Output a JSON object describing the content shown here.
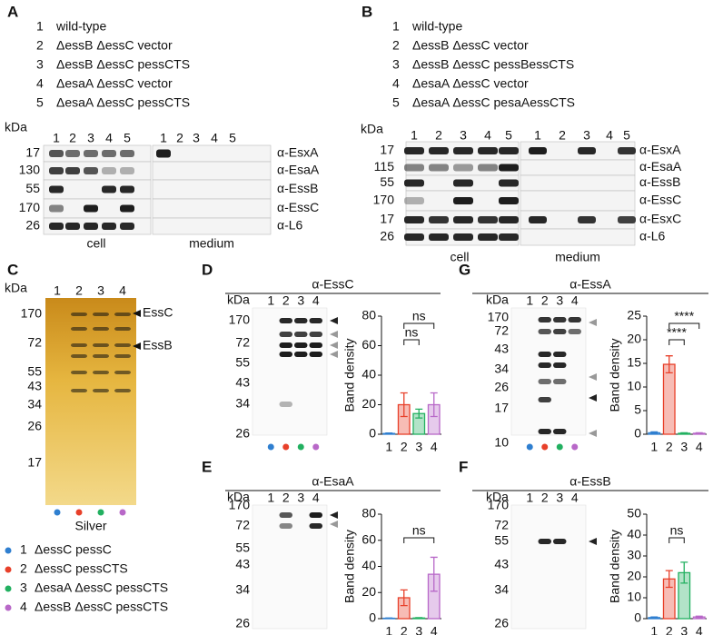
{
  "A": {
    "label": "A",
    "legend": [
      {
        "n": "1",
        "text": "wild-type"
      },
      {
        "n": "2",
        "text": "ΔessB ΔessC vector"
      },
      {
        "n": "3",
        "text": "ΔessB ΔessC pessCTS"
      },
      {
        "n": "4",
        "text": "ΔesaA ΔessC vector"
      },
      {
        "n": "5",
        "text": "ΔesaA ΔessC pessCTS"
      }
    ],
    "unit": "kDa",
    "lanes": [
      "1",
      "2",
      "3",
      "4",
      "5"
    ],
    "markers": [
      "17",
      "130",
      "55",
      "170",
      "26"
    ],
    "antibodies": [
      "α-EsxA",
      "α-EsaA",
      "α-EssB",
      "α-EssC",
      "α-L6"
    ],
    "fractions": [
      "cell",
      "medium"
    ]
  },
  "B": {
    "label": "B",
    "legend": [
      {
        "n": "1",
        "text": "wild-type"
      },
      {
        "n": "2",
        "text": "ΔessB ΔessC vector"
      },
      {
        "n": "3",
        "text": "ΔessB ΔessC pessBessCTS"
      },
      {
        "n": "4",
        "text": "ΔesaA ΔessC vector"
      },
      {
        "n": "5",
        "text": "ΔesaA ΔessC pesaAessCTS"
      }
    ],
    "unit": "kDa",
    "lanes": [
      "1",
      "2",
      "3",
      "4",
      "5"
    ],
    "markers": [
      "17",
      "115",
      "55",
      "170",
      "17",
      "26"
    ],
    "antibodies": [
      "α-EsxA",
      "α-EsaA",
      "α-EssB",
      "α-EssC",
      "α-EsxC",
      "α-L6"
    ],
    "fractions": [
      "cell",
      "medium"
    ]
  },
  "C": {
    "label": "C",
    "unit": "kDa",
    "lanes": [
      "1",
      "2",
      "3",
      "4"
    ],
    "markers": [
      "170",
      "72",
      "55",
      "43",
      "34",
      "26",
      "17"
    ],
    "bands": [
      "EssC",
      "EssB"
    ],
    "stain": "Silver",
    "lane_colors": [
      "#2f7fd0",
      "#e8402a",
      "#22b060",
      "#b868c8"
    ],
    "legend": [
      {
        "n": "1",
        "text": "ΔessC pessC"
      },
      {
        "n": "2",
        "text": "ΔessC pessCTS"
      },
      {
        "n": "3",
        "text": "ΔesaA ΔessC pessCTS"
      },
      {
        "n": "4",
        "text": "ΔessB ΔessC pessCTS"
      }
    ]
  },
  "D": {
    "label": "D",
    "antibody": "α-EssC",
    "unit": "kDa",
    "lanes": [
      "1",
      "2",
      "3",
      "4"
    ],
    "markers": [
      "170",
      "72",
      "55",
      "43",
      "34",
      "26"
    ],
    "chart_data": {
      "type": "bar",
      "ylabel": "Band density",
      "categories": [
        "1",
        "2",
        "3",
        "4"
      ],
      "values": [
        0.5,
        20,
        14,
        20
      ],
      "errors": [
        0.3,
        8,
        3,
        8
      ],
      "colors": [
        "#2f7fd0",
        "#e8402a",
        "#22b060",
        "#b868c8"
      ],
      "ylim": [
        0,
        80
      ],
      "yticks": [
        0,
        20,
        40,
        60,
        80
      ],
      "annotations": [
        {
          "text": "ns",
          "between": [
            "2",
            "3"
          ]
        },
        {
          "text": "ns",
          "between": [
            "2",
            "4"
          ]
        }
      ]
    }
  },
  "G": {
    "label": "G",
    "antibody": "α-EssA",
    "unit": "kDa",
    "lanes": [
      "1",
      "2",
      "3",
      "4"
    ],
    "markers": [
      "170",
      "72",
      "43",
      "34",
      "26",
      "17",
      "10"
    ],
    "chart_data": {
      "type": "bar",
      "ylabel": "Band density",
      "categories": [
        "1",
        "2",
        "3",
        "4"
      ],
      "values": [
        0.3,
        14.8,
        0.2,
        0.2
      ],
      "errors": [
        0.2,
        1.8,
        0.1,
        0.1
      ],
      "colors": [
        "#2f7fd0",
        "#e8402a",
        "#22b060",
        "#b868c8"
      ],
      "ylim": [
        0,
        25
      ],
      "yticks": [
        0,
        5,
        10,
        15,
        20,
        25
      ],
      "annotations": [
        {
          "text": "****",
          "between": [
            "2",
            "3"
          ]
        },
        {
          "text": "****",
          "between": [
            "2",
            "4"
          ]
        }
      ]
    }
  },
  "E": {
    "label": "E",
    "antibody": "α-EsaA",
    "unit": "kDa",
    "lanes": [
      "1",
      "2",
      "3",
      "4"
    ],
    "markers": [
      "170",
      "72",
      "55",
      "43",
      "34",
      "26"
    ],
    "chart_data": {
      "type": "bar",
      "ylabel": "Band density",
      "categories": [
        "1",
        "2",
        "3",
        "4"
      ],
      "values": [
        0.3,
        16,
        0.5,
        34
      ],
      "errors": [
        0.2,
        6,
        0.3,
        13
      ],
      "colors": [
        "#2f7fd0",
        "#e8402a",
        "#22b060",
        "#b868c8"
      ],
      "ylim": [
        0,
        80
      ],
      "yticks": [
        0,
        20,
        40,
        60,
        80
      ],
      "annotations": [
        {
          "text": "ns",
          "between": [
            "2",
            "4"
          ]
        }
      ]
    }
  },
  "F": {
    "label": "F",
    "antibody": "α-EssB",
    "unit": "kDa",
    "lanes": [
      "1",
      "2",
      "3",
      "4"
    ],
    "markers": [
      "170",
      "72",
      "55",
      "43",
      "34",
      "26"
    ],
    "chart_data": {
      "type": "bar",
      "ylabel": "Band density",
      "categories": [
        "1",
        "2",
        "3",
        "4"
      ],
      "values": [
        0.5,
        19,
        22,
        0.8
      ],
      "errors": [
        0.3,
        4,
        5,
        0.4
      ],
      "colors": [
        "#2f7fd0",
        "#e8402a",
        "#22b060",
        "#b868c8"
      ],
      "ylim": [
        0,
        50
      ],
      "yticks": [
        0,
        10,
        20,
        30,
        40,
        50
      ],
      "annotations": [
        {
          "text": "ns",
          "between": [
            "2",
            "3"
          ]
        }
      ]
    }
  }
}
